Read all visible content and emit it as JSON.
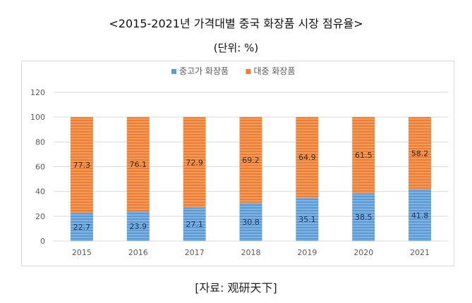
{
  "header": {
    "title": "<2015-2021년 가격대별 중국 화장품 시장 점유율>",
    "unit": "(단위: %)"
  },
  "footer": {
    "source": "[자료: 观研天下]"
  },
  "colors": {
    "series_1": "#5b9bd5",
    "series_2": "#ed7d31",
    "grid": "#d9d9d9",
    "axis_text": "#595959"
  },
  "chart_data": {
    "type": "bar",
    "stacked": true,
    "categories": [
      "2015",
      "2016",
      "2017",
      "2018",
      "2019",
      "2020",
      "2021"
    ],
    "series": [
      {
        "name": "중고가 화장품",
        "values": [
          22.7,
          23.9,
          27.1,
          30.8,
          35.1,
          38.5,
          41.8
        ]
      },
      {
        "name": "대중 화장품",
        "values": [
          77.3,
          76.1,
          72.9,
          69.2,
          64.9,
          61.5,
          58.2
        ]
      }
    ],
    "ylim": [
      0,
      120
    ],
    "yticks": [
      0,
      20,
      40,
      60,
      80,
      100,
      120
    ],
    "grid": true,
    "legend": "top-center"
  }
}
